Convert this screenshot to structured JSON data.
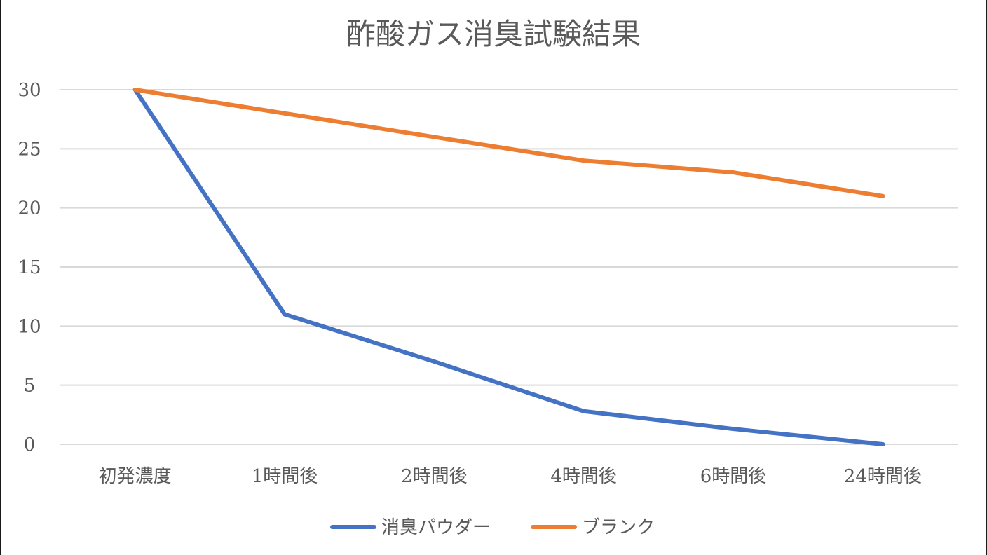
{
  "chart_data": {
    "type": "line",
    "title": "酢酸ガス消臭試験結果",
    "categories": [
      "初発濃度",
      "1時間後",
      "2時間後",
      "4時間後",
      "6時間後",
      "24時間後"
    ],
    "ylim": [
      0,
      30
    ],
    "yticks": [
      0,
      5,
      10,
      15,
      20,
      25,
      30
    ],
    "grid": true,
    "legend_position": "bottom",
    "series": [
      {
        "name": "消臭パウダー",
        "color": "#4472C4",
        "values": [
          30,
          11,
          7,
          2.8,
          1.3,
          0
        ]
      },
      {
        "name": "ブランク",
        "color": "#ED7D31",
        "values": [
          30,
          28,
          26,
          24,
          23,
          21
        ]
      }
    ]
  }
}
